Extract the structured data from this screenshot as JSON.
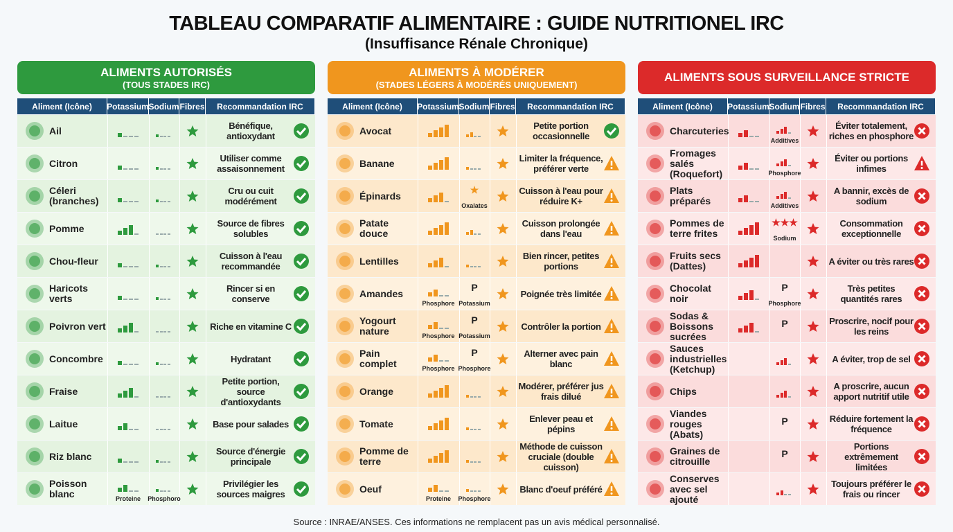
{
  "header": {
    "title": "TABLEAU COMPARATIF ALIMENTAIRE : GUIDE NUTRITIONEL IRC",
    "subtitle": "(Insuffisance Rénale Chronique)"
  },
  "columns": [
    "Aliment (Icône)",
    "Potassium",
    "Sodium",
    "Fibres",
    "Recommandation IRC"
  ],
  "panels": [
    {
      "title": "ALIMENTS AUTORISÉS",
      "subtitle": "(TOUS STADES IRC)",
      "color": "#2e9a3e",
      "row_colors": [
        "#e4f3e0",
        "#eef8eb"
      ],
      "rows": [
        {
          "name": "Ail",
          "k": 1,
          "na": 1,
          "rec": "Bénéfique, antioxydant",
          "status": "ok"
        },
        {
          "name": "Citron",
          "k": 1,
          "na": 1,
          "rec": "Utiliser comme assaisonnement",
          "status": "ok"
        },
        {
          "name": "Céleri (branches)",
          "k": 1,
          "na": 1,
          "rec": "Cru ou cuit modérément",
          "status": "ok"
        },
        {
          "name": "Pomme",
          "k": 3,
          "na": 0,
          "rec": "Source de fibres solubles",
          "status": "ok"
        },
        {
          "name": "Chou-fleur",
          "k": 1,
          "na": 1,
          "rec": "Cuisson à l'eau recommandée",
          "status": "ok"
        },
        {
          "name": "Haricots verts",
          "k": 1,
          "na": 1,
          "rec": "Rincer si en conserve",
          "status": "ok"
        },
        {
          "name": "Poivron vert",
          "k": 3,
          "na": 0,
          "rec": "Riche en vitamine C",
          "status": "ok"
        },
        {
          "name": "Concombre",
          "k": 1,
          "na": 1,
          "rec": "Hydratant",
          "status": "ok"
        },
        {
          "name": "Fraise",
          "k": 3,
          "na": 0,
          "rec": "Petite portion, source d'antioxydants",
          "status": "ok"
        },
        {
          "name": "Laitue",
          "k": 2,
          "na": 0,
          "rec": "Base pour salades",
          "status": "ok"
        },
        {
          "name": "Riz blanc",
          "k": 1,
          "na": 1,
          "rec": "Source d'énergie principale",
          "status": "ok"
        },
        {
          "name": "Poisson blanc",
          "k": 2,
          "k_note": "Proteine",
          "na": 1,
          "na_note": "Phosphoro",
          "rec": "Privilégier les sources maigres",
          "status": "ok"
        }
      ]
    },
    {
      "title": "ALIMENTS À MODÉRER",
      "subtitle": "(STADES LÉGERS À MODÉRÉS UNIQUEMENT)",
      "color": "#f0961e",
      "row_colors": [
        "#fde8cb",
        "#fef1de"
      ],
      "rows": [
        {
          "name": "Avocat",
          "k": 4,
          "na": 2,
          "rec": "Petite portion occasionnelle",
          "status": "ok"
        },
        {
          "name": "Banane",
          "k": 4,
          "na": 1,
          "rec": "Limiter la fréquence, préférer verte",
          "status": "warn"
        },
        {
          "name": "Épinards",
          "k": 3,
          "na_sym": "★",
          "na_note": "Oxalates",
          "rec": "Cuisson à l'eau pour réduire K+",
          "status": "warn"
        },
        {
          "name": "Patate douce",
          "k": 4,
          "na": 2,
          "rec": "Cuisson prolongée dans l'eau",
          "status": "warn"
        },
        {
          "name": "Lentilles",
          "k": 3,
          "na": 1,
          "rec": "Bien rincer, petites portions",
          "status": "warn"
        },
        {
          "name": "Amandes",
          "k": 2,
          "k_note": "Phosphore",
          "na_sym": "P",
          "na_note": "Potassium",
          "rec": "Poignée très limitée",
          "status": "warn"
        },
        {
          "name": "Yogourt nature",
          "k": 2,
          "k_note": "Phosphore",
          "na_sym": "P",
          "na_note": "Potassium",
          "rec": "Contrôler la portion",
          "status": "warn"
        },
        {
          "name": "Pain complet",
          "k": 2,
          "k_note": "Phosphore",
          "na_sym": "P",
          "na_note": "Phosphore",
          "rec": "Alterner avec pain blanc",
          "status": "warn"
        },
        {
          "name": "Orange",
          "k": 4,
          "na": 1,
          "rec": "Modérer, préférer jus frais dilué",
          "status": "warn"
        },
        {
          "name": "Tomate",
          "k": 4,
          "na": 1,
          "rec": "Enlever peau et pépins",
          "status": "warn"
        },
        {
          "name": "Pomme de terre",
          "k": 4,
          "na": 1,
          "rec": "Méthode de cuisson cruciale (double cuisson)",
          "status": "warn"
        },
        {
          "name": "Oeuf",
          "k": 2,
          "k_note": "Proteine",
          "na": 1,
          "na_note": "Phosphore",
          "rec": "Blanc d'oeuf préféré",
          "status": "warn"
        }
      ]
    },
    {
      "title": "ALIMENTS SOUS SURVEILLANCE STRICTE",
      "color": "#dc2a2a",
      "row_colors": [
        "#fbdcdc",
        "#fde8e8"
      ],
      "rows": [
        {
          "name": "Charcuteries",
          "k": 2,
          "na": 3,
          "na_note": "Additives",
          "rec": "Éviter totalement, riches en phosphore",
          "status": "stop"
        },
        {
          "name": "Fromages salés (Roquefort)",
          "k": 2,
          "na": 3,
          "na_note": "Phosphore",
          "rec": "Éviter ou portions infimes",
          "status": "warn"
        },
        {
          "name": "Plats préparés",
          "k": 2,
          "na": 3,
          "na_note": "Additives",
          "rec": "A bannir, excès de sodium",
          "status": "stop"
        },
        {
          "name": "Pommes de terre frites",
          "k": 4,
          "na_sym": "★★★",
          "na_note": "Sodium",
          "rec": "Consommation exceptionnelle",
          "status": "stop"
        },
        {
          "name": "Fruits secs (Dattes)",
          "k": 4,
          "rec": "A éviter ou très rares",
          "status": "stop"
        },
        {
          "name": "Chocolat noir",
          "k": 3,
          "na_sym": "P",
          "na_note": "Phosphore",
          "rec": "Très petites quantités rares",
          "status": "stop"
        },
        {
          "name": "Sodas & Boissons sucrées",
          "k": 3,
          "na_sym": "P",
          "rec": "Proscrire, nocif pour les reins",
          "status": "stop"
        },
        {
          "name": "Sauces industrielles (Ketchup)",
          "na": 3,
          "rec": "A éviter, trop de sel",
          "status": "stop"
        },
        {
          "name": "Chips",
          "na": 3,
          "rec": "A proscrire, aucun apport nutritif utile",
          "status": "stop"
        },
        {
          "name": "Viandes rouges (Abats)",
          "na_sym": "P",
          "rec": "Réduire fortement la fréquence",
          "status": "stop"
        },
        {
          "name": "Graines de citrouille",
          "na_sym": "P",
          "rec": "Portions extrêmement limitées",
          "status": "stop"
        },
        {
          "name": "Conserves avec sel ajouté",
          "na": 2,
          "rec": "Toujours préférer le frais ou rincer",
          "status": "stop"
        }
      ]
    }
  ],
  "footer": "Source : INRAE/ANSES. Ces informations ne remplacent pas un avis médical personnalisé."
}
